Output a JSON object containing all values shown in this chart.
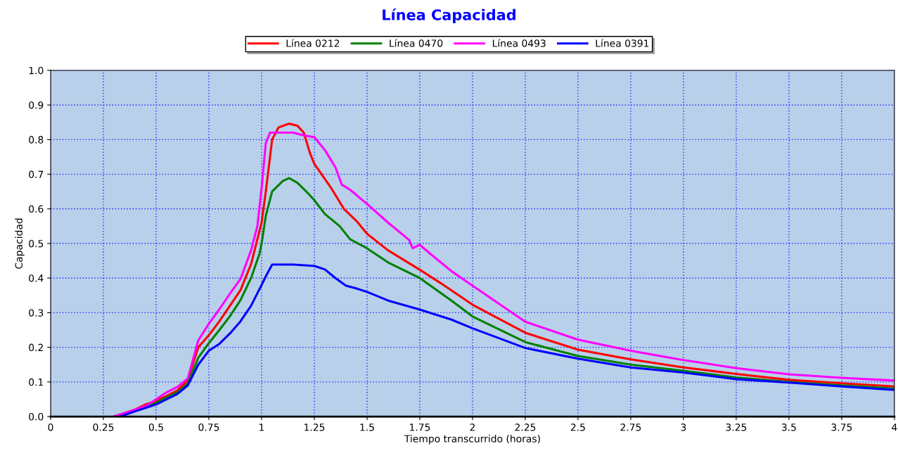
{
  "chart_data": {
    "type": "line",
    "title": "Línea Capacidad",
    "xlabel": "Tiempo transcurrido (horas)",
    "ylabel": "Capacidad",
    "xlim": [
      0,
      4
    ],
    "xticks": [
      0,
      0.25,
      0.5,
      0.75,
      1,
      1.25,
      1.5,
      1.75,
      2,
      2.25,
      2.5,
      2.75,
      3,
      3.25,
      3.5,
      3.75,
      4
    ],
    "ylim": [
      0,
      1
    ],
    "yticks": [
      {
        "value": 0,
        "label": "0.0"
      },
      0.1,
      0.2,
      0.3,
      0.4,
      0.5,
      0.6,
      0.7,
      0.8,
      0.9,
      {
        "value": 1,
        "label": "1.0"
      }
    ],
    "grid": true,
    "legend": "top",
    "line_style": "solid",
    "marker": "none",
    "series": [
      {
        "name": "Línea 0212",
        "color": "#ff0000",
        "x": [
          0.3,
          0.4,
          0.45,
          0.5,
          0.55,
          0.6,
          0.65,
          0.7,
          0.75,
          0.8,
          0.85,
          0.9,
          0.95,
          1.0,
          1.02,
          1.05,
          1.08,
          1.13,
          1.17,
          1.2,
          1.23,
          1.25,
          1.33,
          1.39,
          1.45,
          1.5,
          1.6,
          1.75,
          1.85,
          2.0,
          2.25,
          2.5,
          2.75,
          3.0,
          3.25,
          3.5,
          3.75,
          4.0
        ],
        "values": [
          0,
          0.02,
          0.035,
          0.045,
          0.06,
          0.075,
          0.105,
          0.2,
          0.235,
          0.275,
          0.32,
          0.365,
          0.44,
          0.56,
          0.65,
          0.8,
          0.835,
          0.846,
          0.84,
          0.82,
          0.76,
          0.73,
          0.66,
          0.6,
          0.565,
          0.528,
          0.48,
          0.424,
          0.385,
          0.323,
          0.242,
          0.193,
          0.165,
          0.142,
          0.123,
          0.106,
          0.096,
          0.087
        ]
      },
      {
        "name": "Línea 0470",
        "color": "#008000",
        "x": [
          0.33,
          0.5,
          0.55,
          0.6,
          0.65,
          0.7,
          0.75,
          0.8,
          0.85,
          0.9,
          0.95,
          0.99,
          1.0,
          1.02,
          1.05,
          1.1,
          1.13,
          1.17,
          1.22,
          1.25,
          1.3,
          1.37,
          1.42,
          1.5,
          1.6,
          1.75,
          1.9,
          2.0,
          2.25,
          2.5,
          2.75,
          3.0,
          3.25,
          3.5,
          3.75,
          4.0
        ],
        "values": [
          0,
          0.04,
          0.055,
          0.07,
          0.095,
          0.17,
          0.212,
          0.25,
          0.29,
          0.336,
          0.4,
          0.47,
          0.5,
          0.58,
          0.65,
          0.68,
          0.689,
          0.675,
          0.645,
          0.625,
          0.585,
          0.55,
          0.512,
          0.486,
          0.445,
          0.4,
          0.335,
          0.289,
          0.215,
          0.175,
          0.15,
          0.132,
          0.113,
          0.1,
          0.09,
          0.081
        ]
      },
      {
        "name": "Línea 0493",
        "color": "#ff00ff",
        "x": [
          0.3,
          0.35,
          0.4,
          0.45,
          0.5,
          0.55,
          0.6,
          0.65,
          0.7,
          0.75,
          0.8,
          0.85,
          0.9,
          0.95,
          0.98,
          1.0,
          1.02,
          1.04,
          1.15,
          1.2,
          1.25,
          1.3,
          1.35,
          1.38,
          1.42,
          1.5,
          1.6,
          1.7,
          1.716,
          1.75,
          1.8,
          1.9,
          2.0,
          2.25,
          2.5,
          2.75,
          3.0,
          3.25,
          3.5,
          3.75,
          4.0
        ],
        "values": [
          0,
          0.01,
          0.02,
          0.03,
          0.05,
          0.07,
          0.085,
          0.11,
          0.22,
          0.268,
          0.31,
          0.355,
          0.397,
          0.48,
          0.55,
          0.66,
          0.79,
          0.82,
          0.82,
          0.812,
          0.807,
          0.77,
          0.72,
          0.67,
          0.655,
          0.614,
          0.56,
          0.51,
          0.486,
          0.496,
          0.47,
          0.42,
          0.378,
          0.274,
          0.222,
          0.19,
          0.163,
          0.14,
          0.122,
          0.112,
          0.104
        ]
      },
      {
        "name": "Línea 0391",
        "color": "#0000ff",
        "x": [
          0.33,
          0.4,
          0.45,
          0.5,
          0.55,
          0.6,
          0.65,
          0.7,
          0.75,
          0.8,
          0.85,
          0.9,
          0.95,
          1.0,
          1.02,
          1.05,
          1.15,
          1.25,
          1.3,
          1.35,
          1.4,
          1.45,
          1.5,
          1.6,
          1.75,
          1.9,
          2.0,
          2.25,
          2.5,
          2.75,
          3.0,
          3.25,
          3.5,
          3.75,
          4.0
        ],
        "values": [
          0,
          0.015,
          0.025,
          0.035,
          0.05,
          0.065,
          0.09,
          0.15,
          0.19,
          0.21,
          0.24,
          0.275,
          0.32,
          0.38,
          0.405,
          0.439,
          0.439,
          0.435,
          0.425,
          0.4,
          0.378,
          0.37,
          0.36,
          0.335,
          0.309,
          0.28,
          0.255,
          0.198,
          0.167,
          0.142,
          0.127,
          0.108,
          0.098,
          0.087,
          0.077
        ]
      }
    ]
  }
}
